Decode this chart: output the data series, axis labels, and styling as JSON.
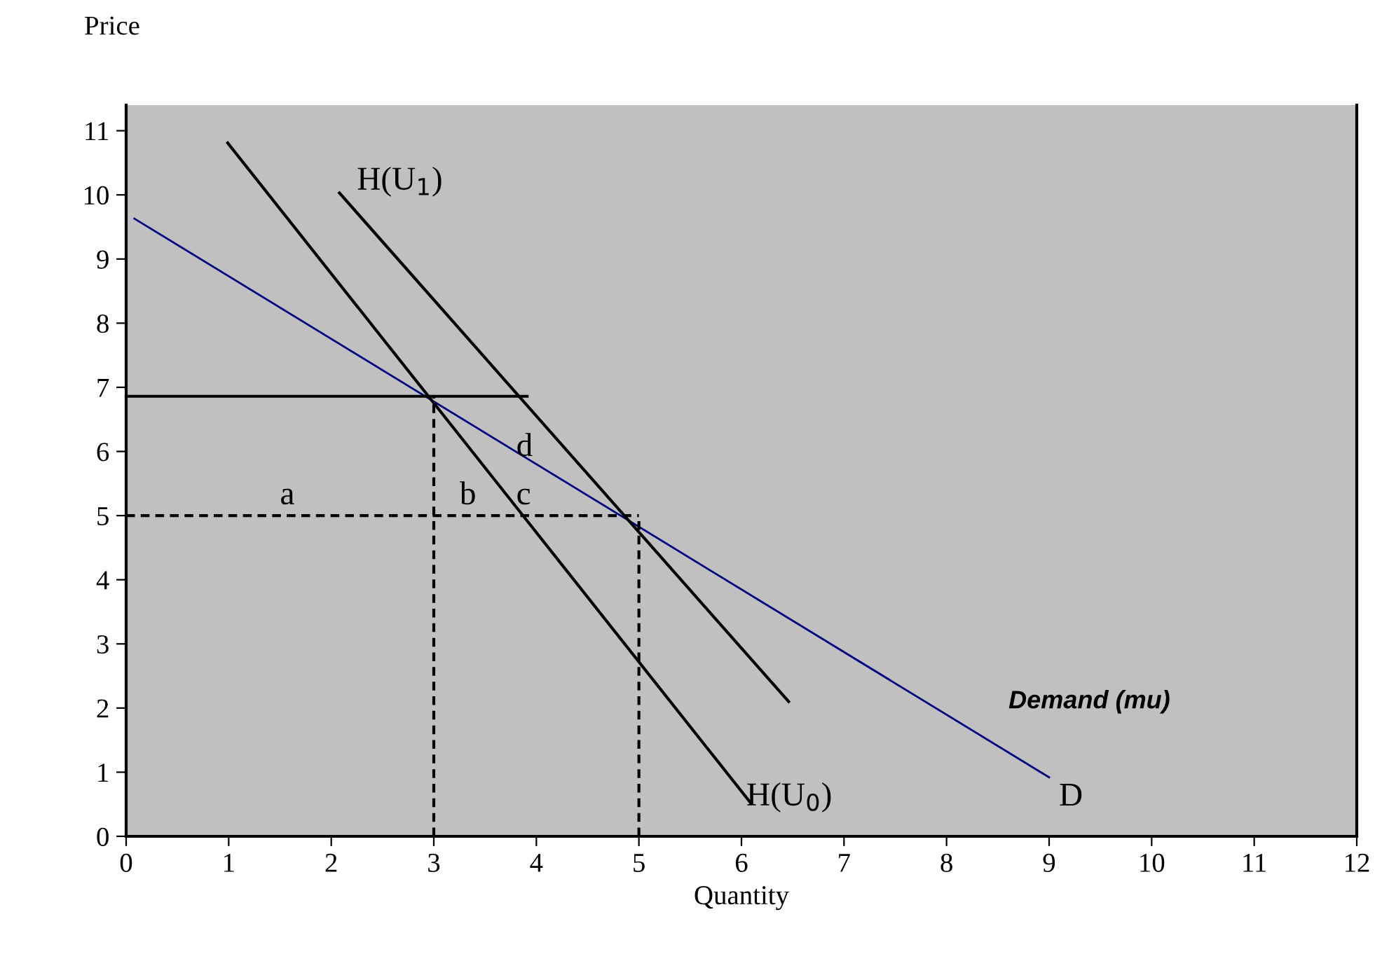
{
  "chart_data": {
    "type": "line",
    "xlabel": "Quantity",
    "ylabel": "Price",
    "xlim": [
      0,
      12
    ],
    "ylim": [
      0,
      11.4
    ],
    "xticks": [
      0,
      1,
      2,
      3,
      4,
      5,
      6,
      7,
      8,
      9,
      10,
      11,
      12
    ],
    "yticks": [
      0,
      1,
      2,
      3,
      4,
      5,
      6,
      7,
      8,
      9,
      10,
      11
    ],
    "grid": false,
    "legend": false,
    "series": [
      {
        "color": "#000080",
        "x": [
          0.08,
          9.0
        ],
        "values": [
          9.63,
          0.92
        ],
        "line_style": "solid"
      },
      {
        "color": "#000000",
        "x": [
          0.99,
          6.09
        ],
        "values": [
          10.81,
          0.52
        ],
        "line_style": "solid"
      },
      {
        "color": "#000000",
        "x": [
          2.08,
          6.46
        ],
        "values": [
          10.03,
          2.1
        ],
        "line_style": "solid"
      },
      {
        "color": "#000000",
        "x": [
          0,
          3.91
        ],
        "values": [
          6.86,
          6.86
        ],
        "line_style": "solid"
      },
      {
        "color": "#000000",
        "x": [
          0,
          5
        ],
        "values": [
          5,
          5
        ],
        "line_style": "dashed"
      },
      {
        "color": "#000000",
        "x": [
          3,
          3
        ],
        "values": [
          0,
          6.86
        ],
        "line_style": "dashed"
      },
      {
        "color": "#000000",
        "x": [
          5,
          5
        ],
        "values": [
          0,
          5
        ],
        "line_style": "dashed"
      }
    ],
    "annotations": [
      "H(U$_{1}$)",
      "H(U$_{0}$)",
      "a",
      "b",
      "c",
      "d",
      "D",
      "Demand (mu)"
    ]
  }
}
